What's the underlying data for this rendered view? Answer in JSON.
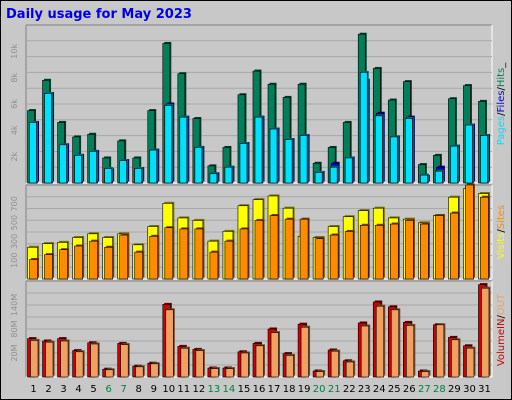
{
  "title": "Daily usage for May 2023",
  "colors": {
    "background": "#c8c8c8",
    "title": "#0000e6",
    "hits": "#00805a",
    "files": "#0000d0",
    "pages": "#00e0ff",
    "visits": "#ffff00",
    "sites": "#ff8c00",
    "kbin": "#d00000",
    "kbout": "#f0a060",
    "weekend_label": "#008040",
    "tick_label": "#909090"
  },
  "legend": {
    "hits_panel": [
      {
        "text": "Pages",
        "color": "#00e0ff"
      },
      {
        "text": "/",
        "color": "#000000"
      },
      {
        "text": "Files",
        "color": "#0000d0"
      },
      {
        "text": "/",
        "color": "#000000"
      },
      {
        "text": "Hits",
        "color": "#00805a"
      },
      {
        "text": "_",
        "color": "#000000"
      }
    ],
    "visits_panel": [
      {
        "text": "Visits",
        "color": "#ffff00"
      },
      {
        "text": "/",
        "color": "#000000"
      },
      {
        "text": "Sites",
        "color": "#ff8c00"
      }
    ],
    "volume_panel": [
      {
        "text": "Volume",
        "color": "#d00000"
      },
      {
        "text": "IN",
        "color": "#d00000"
      },
      {
        "text": "/",
        "color": "#000000"
      },
      {
        "text": "OUT",
        "color": "#f0a060"
      }
    ]
  },
  "chart_data": [
    {
      "type": "bar",
      "panel": "hits",
      "ytick_labels": [
        "2k",
        "4k",
        "6k",
        "8k",
        "10k"
      ],
      "ylim": [
        0,
        12000
      ],
      "categories": [
        "1",
        "2",
        "3",
        "4",
        "5",
        "6",
        "7",
        "8",
        "9",
        "10",
        "11",
        "12",
        "13",
        "14",
        "15",
        "16",
        "17",
        "18",
        "19",
        "20",
        "21",
        "22",
        "23",
        "24",
        "25",
        "26",
        "27",
        "28",
        "29",
        "30",
        "31"
      ],
      "weekend_days": [
        6,
        7,
        13,
        14,
        20,
        21,
        27,
        28
      ],
      "series": [
        {
          "name": "Hits",
          "values": [
            5500,
            7800,
            4600,
            3500,
            3700,
            1900,
            3200,
            1900,
            5500,
            10600,
            8300,
            4900,
            1300,
            2700,
            6700,
            8500,
            7500,
            6500,
            7500,
            1500,
            2700,
            4600,
            11300,
            8700,
            6300,
            7700,
            1400,
            2100,
            6400,
            7400,
            6200
          ]
        },
        {
          "name": "Files",
          "values": [
            4600,
            6800,
            2900,
            2100,
            2400,
            1000,
            1700,
            1100,
            2500,
            6000,
            5000,
            2700,
            700,
            1200,
            3000,
            5000,
            4100,
            3300,
            3600,
            800,
            1500,
            1900,
            7800,
            5300,
            3500,
            5000,
            500,
            1200,
            2800,
            4400,
            3600
          ]
        },
        {
          "name": "Pages",
          "values": [
            4600,
            6800,
            2900,
            2100,
            2400,
            1100,
            1700,
            1100,
            2500,
            5900,
            5000,
            2700,
            700,
            1200,
            3000,
            5000,
            4100,
            3300,
            3600,
            800,
            1200,
            1900,
            8400,
            5100,
            3500,
            4900,
            600,
            900,
            2800,
            4400,
            3600
          ]
        }
      ]
    },
    {
      "type": "bar",
      "panel": "visits",
      "ytick_labels": [
        "100",
        "300",
        "500",
        "700"
      ],
      "ylim": [
        0,
        770
      ],
      "categories": [
        "1",
        "2",
        "3",
        "4",
        "5",
        "6",
        "7",
        "8",
        "9",
        "10",
        "11",
        "12",
        "13",
        "14",
        "15",
        "16",
        "17",
        "18",
        "19",
        "20",
        "21",
        "22",
        "23",
        "24",
        "25",
        "26",
        "27",
        "28",
        "29",
        "30",
        "31"
      ],
      "series": [
        {
          "name": "Visits",
          "values": [
            260,
            290,
            300,
            340,
            370,
            340,
            370,
            280,
            430,
            620,
            500,
            480,
            310,
            390,
            600,
            650,
            680,
            580,
            350,
            340,
            430,
            510,
            560,
            580,
            500,
            490,
            460,
            520,
            670,
            740,
            700
          ]
        },
        {
          "name": "Sites",
          "values": [
            160,
            200,
            240,
            270,
            310,
            260,
            360,
            220,
            350,
            420,
            410,
            410,
            220,
            310,
            410,
            480,
            520,
            490,
            490,
            330,
            360,
            390,
            440,
            440,
            450,
            480,
            450,
            520,
            540,
            770,
            670
          ]
        }
      ]
    },
    {
      "type": "bar",
      "panel": "volume",
      "ytick_labels": [
        "20M",
        "80M",
        "140M"
      ],
      "ylim": [
        0,
        160
      ],
      "categories": [
        "1",
        "2",
        "3",
        "4",
        "5",
        "6",
        "7",
        "8",
        "9",
        "10",
        "11",
        "12",
        "13",
        "14",
        "15",
        "16",
        "17",
        "18",
        "19",
        "20",
        "21",
        "22",
        "23",
        "24",
        "25",
        "26",
        "27",
        "28",
        "29",
        "30",
        "31"
      ],
      "series": [
        {
          "name": "IN",
          "values": [
            64,
            60,
            64,
            44,
            57,
            13,
            56,
            18,
            23,
            121,
            51,
            46,
            15,
            15,
            42,
            56,
            80,
            39,
            88,
            10,
            45,
            27,
            90,
            125,
            117,
            91,
            10,
            87,
            66,
            52,
            154
          ]
        },
        {
          "name": "OUT",
          "values": [
            61,
            58,
            60,
            42,
            55,
            12,
            54,
            17,
            22,
            112,
            48,
            44,
            14,
            14,
            40,
            52,
            74,
            36,
            83,
            9,
            43,
            25,
            85,
            118,
            112,
            86,
            9,
            87,
            62,
            48,
            148
          ]
        }
      ]
    }
  ]
}
